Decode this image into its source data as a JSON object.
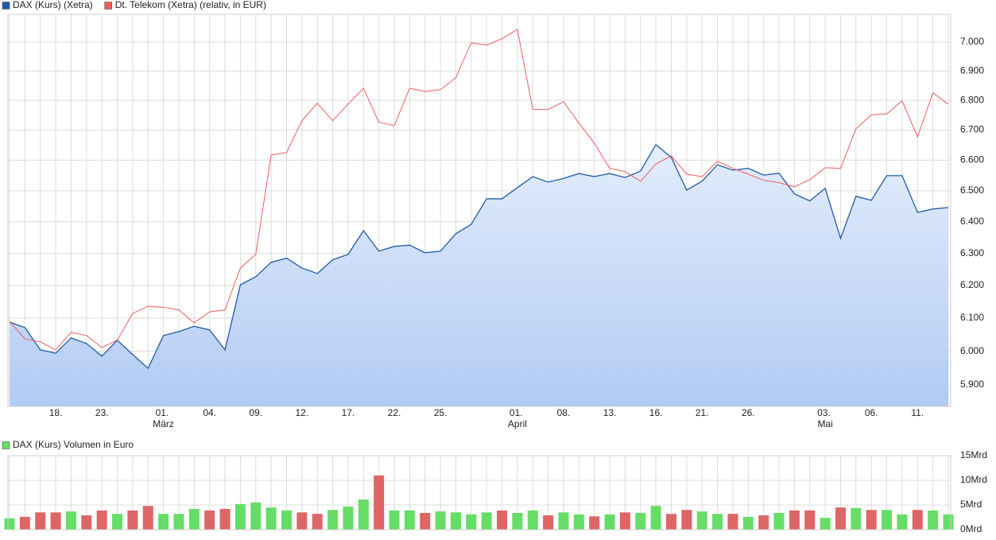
{
  "chart_data": [
    {
      "type": "line",
      "log_scale": true,
      "grid": true,
      "legend": "top-left",
      "y_axis_side": "right",
      "categories": [
        null,
        null,
        null,
        "18.",
        null,
        null,
        "23.",
        null,
        null,
        null,
        "01. März",
        null,
        null,
        "04.",
        null,
        null,
        "09.",
        null,
        null,
        "12.",
        null,
        null,
        "17.",
        null,
        null,
        "22.",
        null,
        null,
        "25.",
        null,
        null,
        null,
        null,
        "01. April",
        null,
        null,
        "08.",
        null,
        null,
        "13.",
        null,
        null,
        "16.",
        null,
        null,
        "21.",
        null,
        null,
        "26.",
        null,
        null,
        null,
        null,
        "03. Mai",
        null,
        null,
        "06.",
        null,
        null,
        "11.",
        null,
        null
      ],
      "series": [
        {
          "name": "DAX (Kurs) (Xetra)",
          "color": "#1f5aaa",
          "area": true,
          "values": [
            6088,
            6071,
            6004,
            5994,
            6040,
            6023,
            5985,
            6033,
            5990,
            5949,
            6047,
            6059,
            6075,
            6064,
            6004,
            6202,
            6227,
            6272,
            6285,
            6254,
            6237,
            6280,
            6297,
            6372,
            6307,
            6322,
            6326,
            6302,
            6307,
            6362,
            6392,
            6474,
            6474,
            6510,
            6546,
            6528,
            6540,
            6556,
            6546,
            6556,
            6543,
            6564,
            6651,
            6609,
            6502,
            6531,
            6585,
            6567,
            6573,
            6551,
            6557,
            6490,
            6467,
            6508,
            6347,
            6482,
            6469,
            6549,
            6549,
            6430,
            6441,
            6446
          ]
        },
        {
          "name": "Dt. Telekom (Xetra) (relativ, in EUR)",
          "color": "#ef5b5b",
          "area": false,
          "values": [
            6090,
            6037,
            6028,
            6004,
            6057,
            6047,
            6011,
            6033,
            6114,
            6136,
            6133,
            6125,
            6085,
            6119,
            6125,
            6254,
            6297,
            6617,
            6625,
            6731,
            6790,
            6731,
            6787,
            6841,
            6726,
            6715,
            6841,
            6830,
            6836,
            6877,
            6998,
            6990,
            7012,
            7045,
            6769,
            6769,
            6795,
            6723,
            6656,
            6573,
            6562,
            6531,
            6587,
            6614,
            6554,
            6546,
            6596,
            6573,
            6554,
            6534,
            6526,
            6513,
            6536,
            6575,
            6573,
            6704,
            6751,
            6754,
            6798,
            6677,
            6825,
            6787
          ]
        }
      ],
      "ylim": [
        5837,
        7098
      ],
      "yticks": [
        {
          "value": 5900,
          "label": "5.900"
        },
        {
          "value": 6000,
          "label": "6.000"
        },
        {
          "value": 6100,
          "label": "6.100"
        },
        {
          "value": 6200,
          "label": "6.200"
        },
        {
          "value": 6300,
          "label": "6.300"
        },
        {
          "value": 6400,
          "label": "6.400"
        },
        {
          "value": 6500,
          "label": "6.500"
        },
        {
          "value": 6600,
          "label": "6.600"
        },
        {
          "value": 6700,
          "label": "6.700"
        },
        {
          "value": 6800,
          "label": "6.800"
        },
        {
          "value": 6900,
          "label": "6.900"
        },
        {
          "value": 7000,
          "label": "7.000"
        }
      ]
    },
    {
      "type": "bar",
      "grid": true,
      "legend": "top-left",
      "y_axis_side": "right",
      "series": [
        {
          "name": "DAX (Kurs) Volumen in Euro",
          "color": "#66dd66",
          "values": [
            2.3,
            2.6,
            3.5,
            3.5,
            3.7,
            2.9,
            3.9,
            3.2,
            3.9,
            4.8,
            3.2,
            3.2,
            4.2,
            3.9,
            4.2,
            5.2,
            5.5,
            4.5,
            3.9,
            3.5,
            3.2,
            4.0,
            4.7,
            6.1,
            11.0,
            3.9,
            3.9,
            3.4,
            3.7,
            3.5,
            3.1,
            3.5,
            3.9,
            3.4,
            3.9,
            2.9,
            3.5,
            3.1,
            2.7,
            3.1,
            3.5,
            3.4,
            4.8,
            3.2,
            4.0,
            3.7,
            3.2,
            3.2,
            2.6,
            2.9,
            3.4,
            3.9,
            3.9,
            2.4,
            4.5,
            4.4,
            4.0,
            4.0,
            3.1,
            4.0,
            3.9,
            3.1
          ],
          "colors": [
            "#66dd66",
            "#dd6666",
            "#dd6666",
            "#dd6666",
            "#66dd66",
            "#dd6666",
            "#dd6666",
            "#66dd66",
            "#dd6666",
            "#dd6666",
            "#66dd66",
            "#66dd66",
            "#66dd66",
            "#dd6666",
            "#dd6666",
            "#66dd66",
            "#66dd66",
            "#66dd66",
            "#66dd66",
            "#dd6666",
            "#dd6666",
            "#66dd66",
            "#66dd66",
            "#66dd66",
            "#dd6666",
            "#66dd66",
            "#66dd66",
            "#dd6666",
            "#66dd66",
            "#66dd66",
            "#66dd66",
            "#66dd66",
            "#dd6666",
            "#66dd66",
            "#66dd66",
            "#dd6666",
            "#66dd66",
            "#66dd66",
            "#dd6666",
            "#66dd66",
            "#dd6666",
            "#66dd66",
            "#66dd66",
            "#dd6666",
            "#dd6666",
            "#66dd66",
            "#66dd66",
            "#dd6666",
            "#66dd66",
            "#dd6666",
            "#66dd66",
            "#dd6666",
            "#dd6666",
            "#66dd66",
            "#dd6666",
            "#66dd66",
            "#dd6666",
            "#66dd66",
            "#66dd66",
            "#dd6666",
            "#66dd66",
            "#66dd66"
          ]
        }
      ],
      "ylim": [
        0,
        15
      ],
      "yticks": [
        {
          "value": 0,
          "label": "0Mrd"
        },
        {
          "value": 5,
          "label": "5Mrd"
        },
        {
          "value": 10,
          "label": "10Mrd"
        },
        {
          "value": 15,
          "label": "15Mrd"
        }
      ]
    }
  ]
}
